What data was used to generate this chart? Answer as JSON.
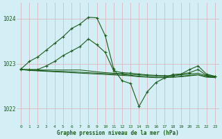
{
  "title": "Graphe pression niveau de la mer (hPa)",
  "bg_color": "#d3eef5",
  "grid_color": "#c0dde8",
  "line_color": "#1a5c1a",
  "xlim": [
    -0.5,
    23.5
  ],
  "ylim": [
    1021.65,
    1024.35
  ],
  "yticks": [
    1022,
    1023,
    1024
  ],
  "xticks": [
    0,
    1,
    2,
    3,
    4,
    5,
    6,
    7,
    8,
    9,
    10,
    11,
    12,
    13,
    14,
    15,
    16,
    17,
    18,
    19,
    20,
    21,
    22,
    23
  ],
  "series_main": [
    1022.88,
    1023.05,
    1023.15,
    1023.3,
    1023.45,
    1023.6,
    1023.78,
    1023.88,
    1024.03,
    1024.02,
    1023.62,
    1022.88,
    1022.62,
    1022.56,
    1022.05,
    1022.38,
    1022.58,
    1022.68,
    1022.76,
    1022.77,
    1022.87,
    1022.95,
    1022.77,
    1022.72
  ],
  "series_a": [
    1022.87,
    1022.87,
    1022.87,
    1022.95,
    1023.05,
    1023.18,
    1023.28,
    1023.38,
    1023.55,
    1023.42,
    1023.25,
    1022.84,
    1022.8,
    1022.79,
    1022.77,
    1022.75,
    1022.74,
    1022.73,
    1022.73,
    1022.77,
    1022.8,
    1022.87,
    1022.74,
    1022.72
  ],
  "series_b": [
    1022.87,
    1022.86,
    1022.86,
    1022.86,
    1022.86,
    1022.86,
    1022.86,
    1022.86,
    1022.84,
    1022.82,
    1022.8,
    1022.79,
    1022.78,
    1022.76,
    1022.75,
    1022.74,
    1022.73,
    1022.73,
    1022.73,
    1022.75,
    1022.77,
    1022.79,
    1022.73,
    1022.71
  ],
  "series_c": [
    1022.87,
    1022.86,
    1022.85,
    1022.84,
    1022.83,
    1022.83,
    1022.82,
    1022.81,
    1022.8,
    1022.79,
    1022.78,
    1022.77,
    1022.76,
    1022.74,
    1022.72,
    1022.71,
    1022.7,
    1022.7,
    1022.7,
    1022.72,
    1022.74,
    1022.76,
    1022.71,
    1022.7
  ],
  "series_d": [
    1022.87,
    1022.85,
    1022.84,
    1022.83,
    1022.82,
    1022.81,
    1022.8,
    1022.79,
    1022.78,
    1022.77,
    1022.76,
    1022.75,
    1022.74,
    1022.73,
    1022.71,
    1022.7,
    1022.69,
    1022.69,
    1022.7,
    1022.71,
    1022.73,
    1022.75,
    1022.7,
    1022.69
  ]
}
